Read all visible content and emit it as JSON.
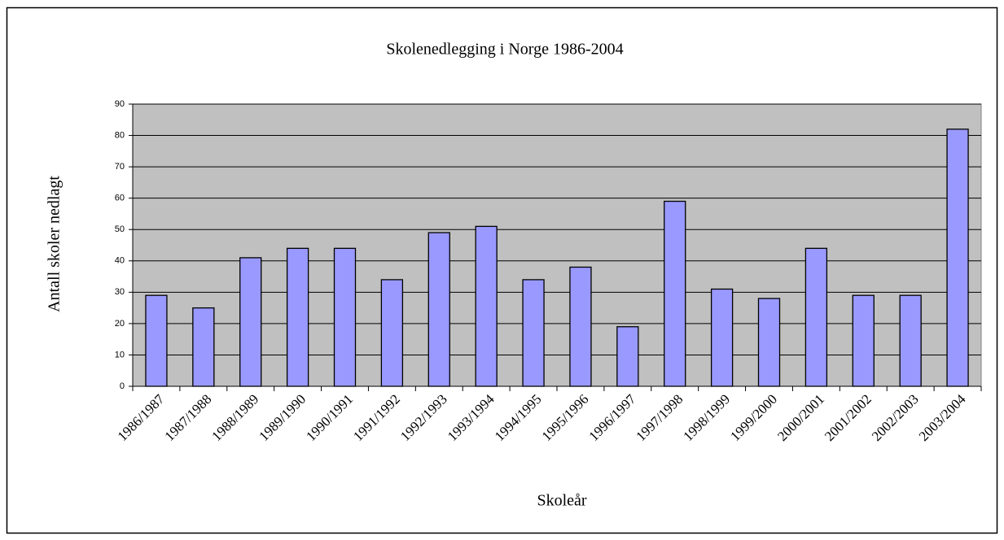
{
  "chart_data": {
    "type": "bar",
    "title": "Skolenedlegging i Norge 1986-2004",
    "x_label": "Skoleår",
    "y_label": "Antall skoler nedlagt",
    "categories": [
      "1986/1987",
      "1987/1988",
      "1988/1989",
      "1989/1990",
      "1990/1991",
      "1991/1992",
      "1992/1993",
      "1993/1994",
      "1994/1995",
      "1995/1996",
      "1996/1997",
      "1997/1998",
      "1998/1999",
      "1999/2000",
      "2000/2001",
      "2001/2002",
      "2002/2003",
      "2003/2004"
    ],
    "values": [
      29,
      25,
      41,
      44,
      44,
      34,
      49,
      51,
      34,
      38,
      19,
      59,
      31,
      28,
      44,
      29,
      29,
      82
    ],
    "color": "#9999ff",
    "plot_background": "#c0c0c0",
    "ylim": [
      0,
      90
    ],
    "yticks": [
      0,
      10,
      20,
      30,
      40,
      50,
      60,
      70,
      80,
      90
    ],
    "grid": true
  }
}
